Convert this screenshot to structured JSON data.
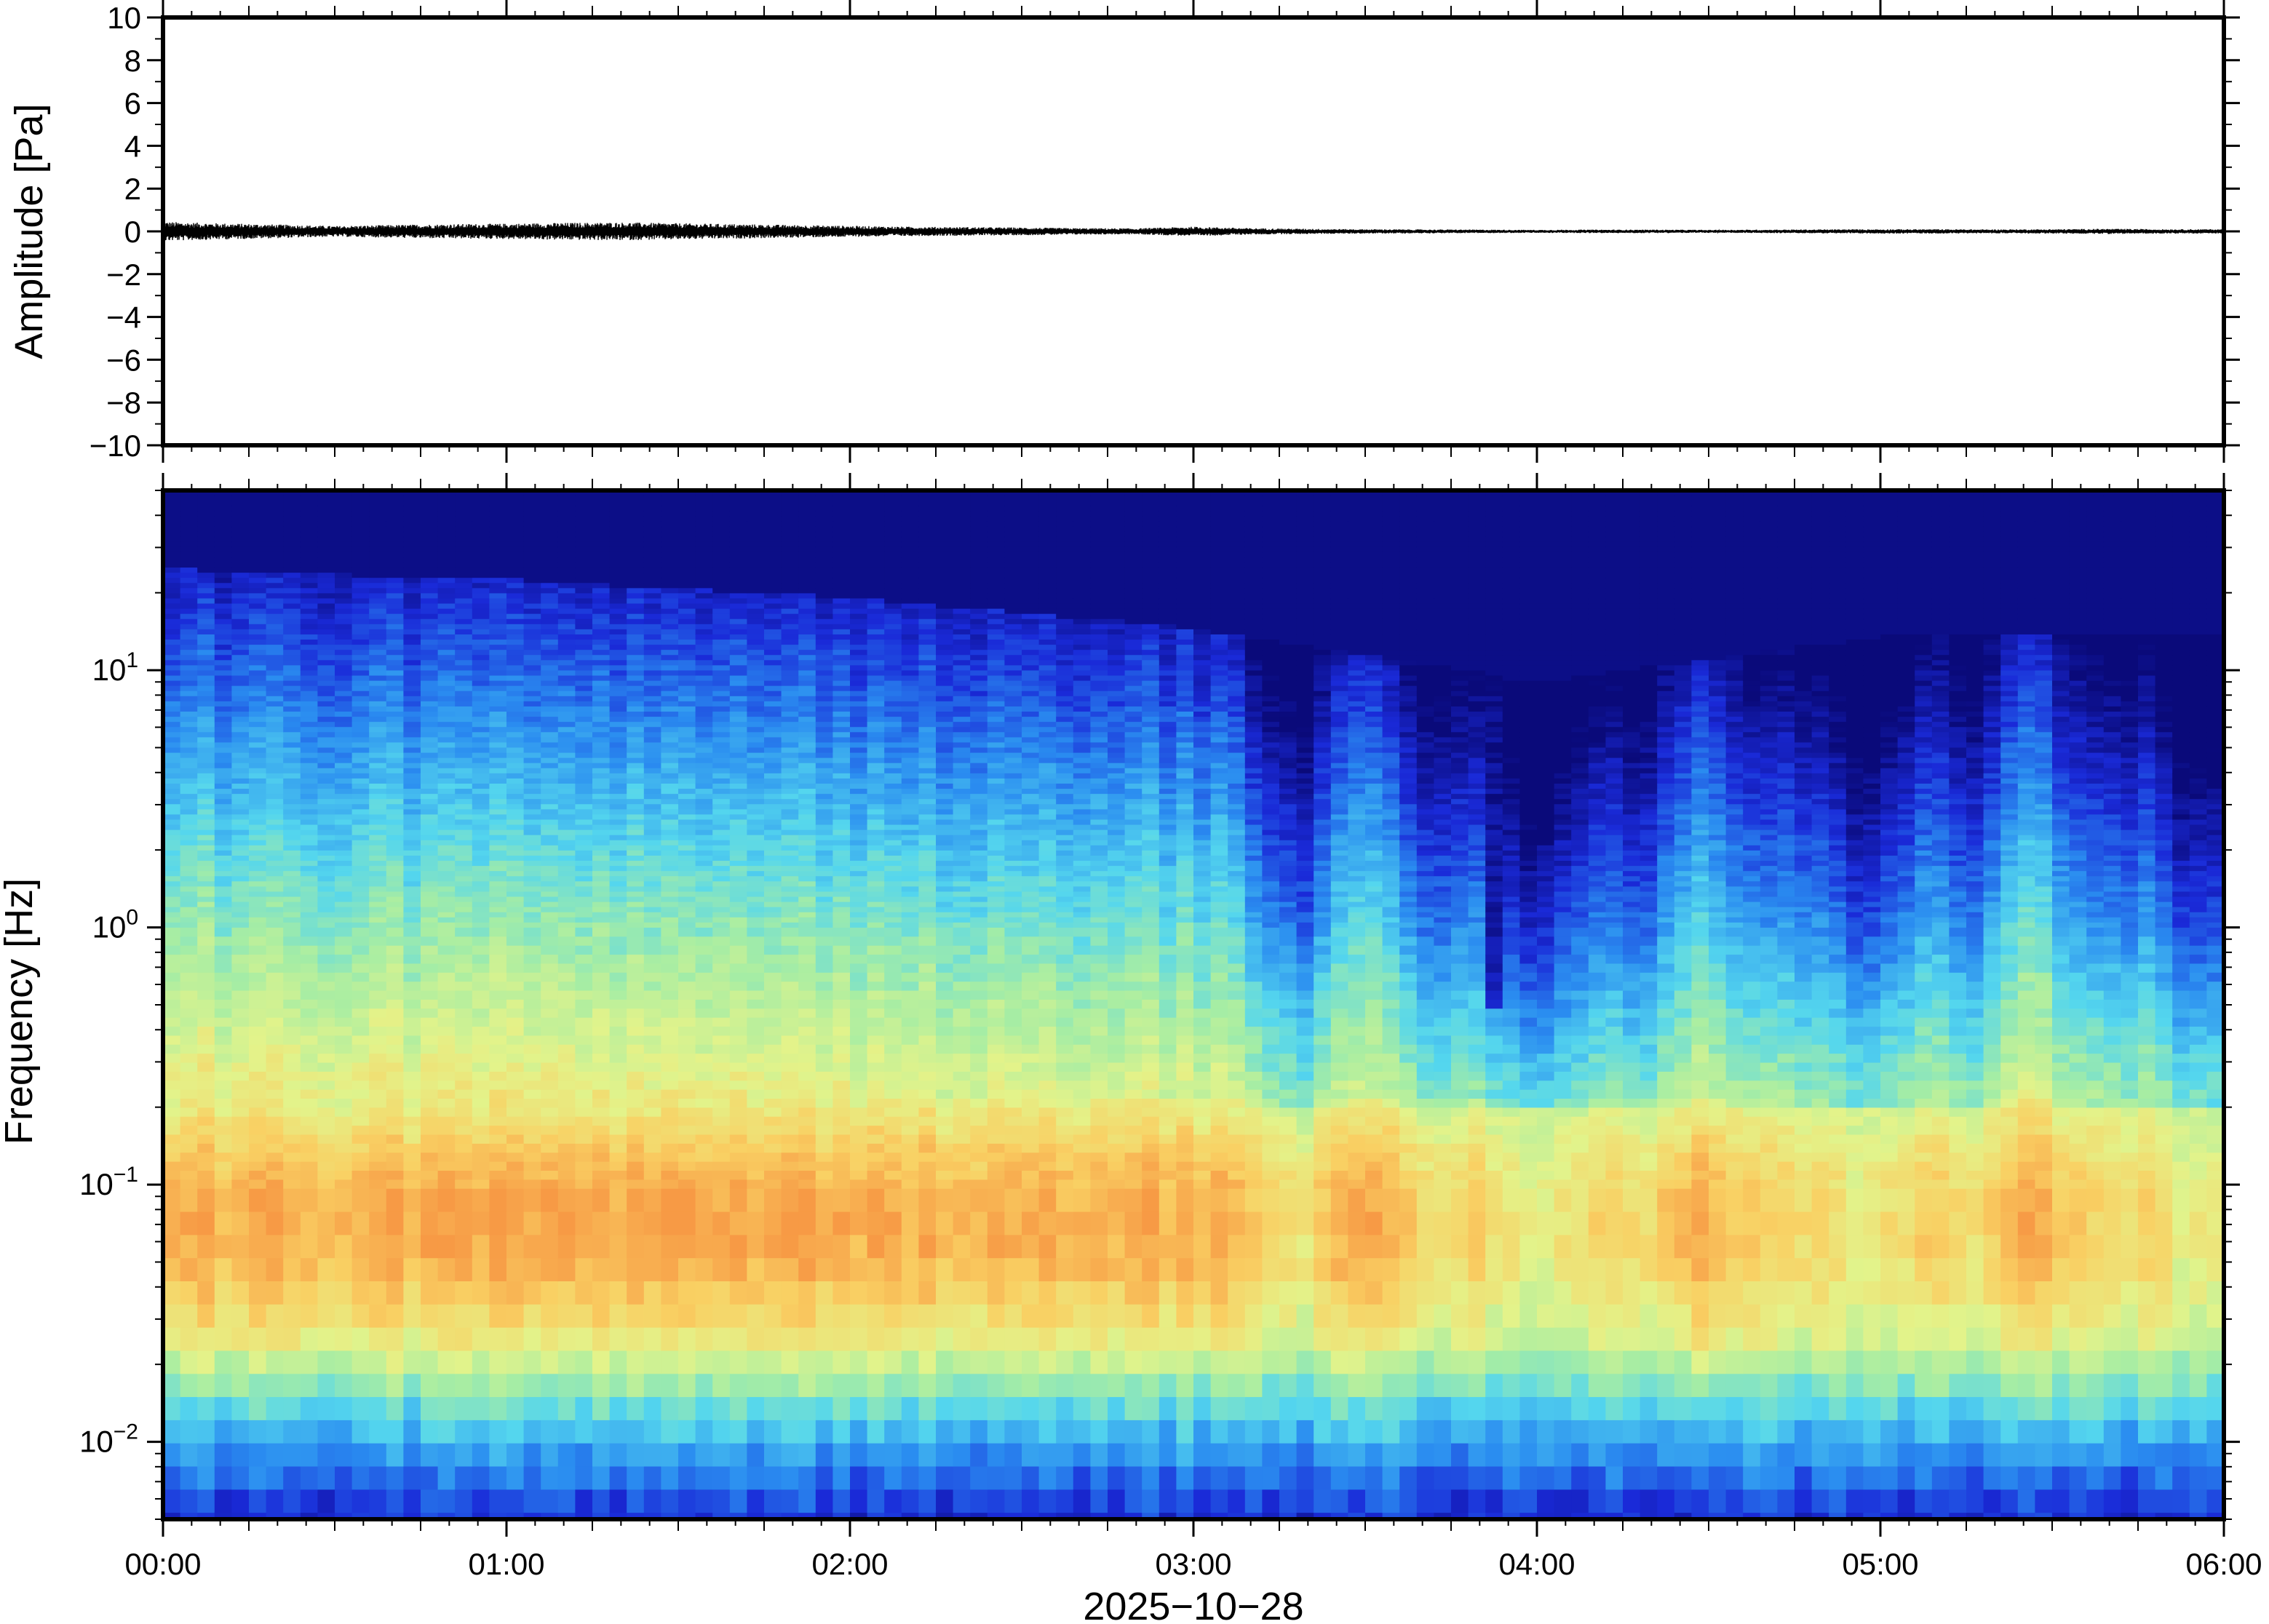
{
  "chart_data": [
    {
      "type": "line",
      "panel": "waveform",
      "ylabel": "Amplitude [Pa]",
      "ylim": [
        -10,
        10
      ],
      "yticks": [
        10,
        8,
        6,
        4,
        2,
        0,
        -2,
        -4,
        -6,
        -8,
        -10
      ],
      "ytick_labels": [
        "10",
        "8",
        "6",
        "4",
        "2",
        "0",
        "−2",
        "−4",
        "−6",
        "−8",
        "−10"
      ],
      "xlim": [
        "00:00",
        "06:00"
      ],
      "series": [
        {
          "color": "#000000",
          "x_minutes": [
            0,
            10,
            20,
            30,
            40,
            50,
            60,
            70,
            80,
            90,
            100,
            110,
            120,
            130,
            140,
            150,
            160,
            170,
            180,
            190,
            200,
            210,
            220,
            230,
            240,
            250,
            260,
            270,
            280,
            290,
            300,
            310,
            320,
            330,
            340,
            350,
            360
          ],
          "envelope_pa": [
            0.45,
            0.38,
            0.32,
            0.25,
            0.3,
            0.34,
            0.36,
            0.4,
            0.42,
            0.38,
            0.34,
            0.3,
            0.26,
            0.22,
            0.2,
            0.18,
            0.15,
            0.14,
            0.22,
            0.15,
            0.12,
            0.1,
            0.09,
            0.08,
            0.07,
            0.08,
            0.08,
            0.07,
            0.08,
            0.09,
            0.1,
            0.1,
            0.09,
            0.1,
            0.12,
            0.1,
            0.1
          ]
        }
      ]
    },
    {
      "type": "heatmap",
      "panel": "spectrogram",
      "ylabel": "Frequency [Hz]",
      "yscale": "log",
      "ylim_hz": [
        0.005,
        50
      ],
      "yticks_hz": [
        10,
        1,
        0.1,
        0.01
      ],
      "ytick_labels": [
        {
          "base": "10",
          "exp": "1"
        },
        {
          "base": "10",
          "exp": "0"
        },
        {
          "base": "10",
          "exp": "−1"
        },
        {
          "base": "10",
          "exp": "−2"
        }
      ],
      "colormap": [
        "#0a0a7a",
        "#1a2ad8",
        "#2a8cf0",
        "#54d6ee",
        "#a6eda4",
        "#e3f38a",
        "#f9d063",
        "#f79a45"
      ],
      "time_range": [
        "00:00",
        "06:00"
      ],
      "top_edge_hz_by_hour": [
        22,
        20,
        17,
        13,
        8,
        12,
        12
      ],
      "notch_time": "03:53",
      "notch_min_hz": 0.5,
      "warm_band_hz": [
        0.03,
        0.2
      ]
    }
  ],
  "xaxis": {
    "tick_labels": [
      "00:00",
      "01:00",
      "02:00",
      "03:00",
      "04:00",
      "05:00",
      "06:00"
    ],
    "date_label": "2025−10−28"
  }
}
